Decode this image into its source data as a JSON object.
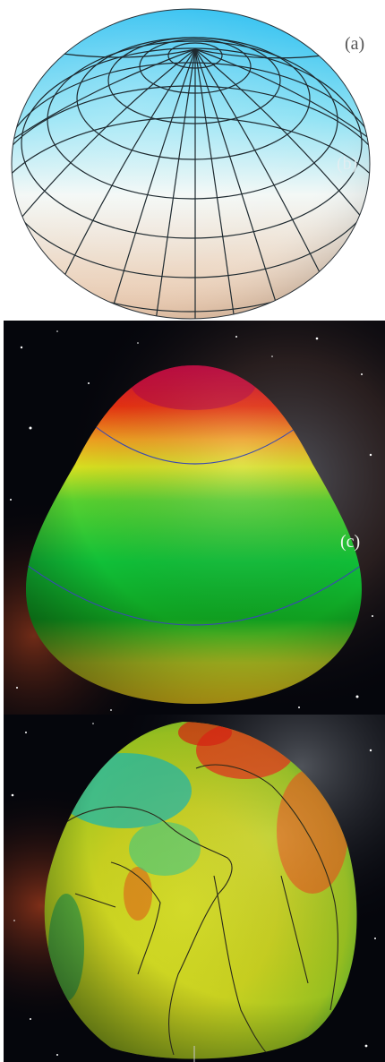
{
  "panels": [
    {
      "id": "a",
      "label": "(a)",
      "subject": "ellipsoid-with-graticule",
      "colors": {
        "top": "#38c6f0",
        "bottom": "#f2d4bc",
        "grid": "#1e2a30"
      }
    },
    {
      "id": "b",
      "label": "(b)",
      "subject": "ellipsoid-with-graticule"
    },
    {
      "id": "c",
      "label": "(c)",
      "subject": "smooth-geoid-model",
      "colors": {
        "cap": "#d8104a",
        "band": "#10c830",
        "base": "#c8b418",
        "contour": "#3a4ab0"
      }
    },
    {
      "id": "d",
      "label": "",
      "subject": "detailed-geoid-with-continents",
      "colors": {
        "high": "#e02818",
        "mid": "#d8d820",
        "low": "#20b8a8",
        "outline": "#222222"
      }
    }
  ],
  "background": "nebula-starfield"
}
